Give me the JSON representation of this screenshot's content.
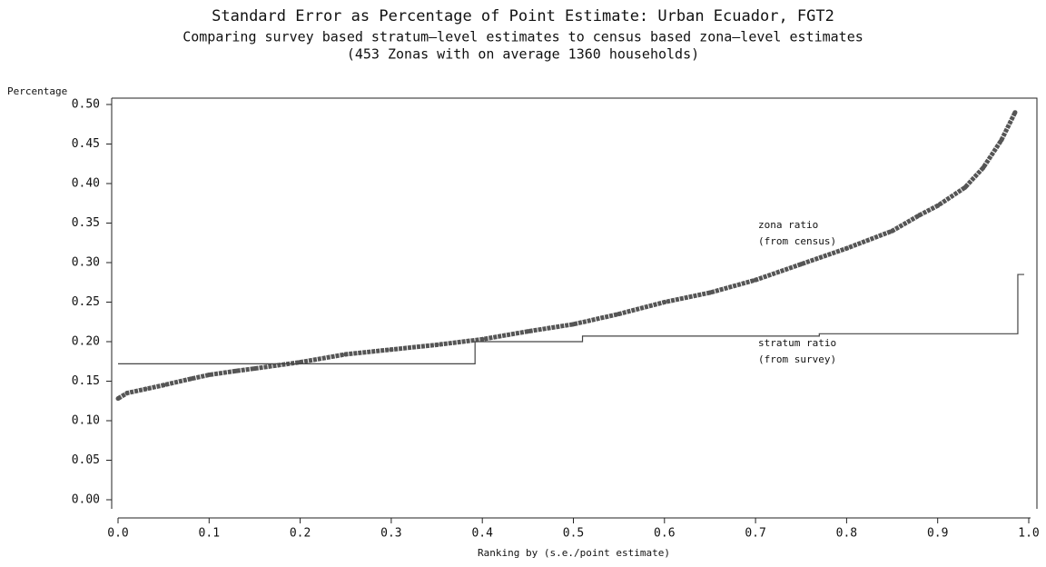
{
  "chart_data": {
    "type": "line",
    "title": "Standard Error as Percentage of Point Estimate: Urban Ecuador, FGT2",
    "subtitle": "Comparing survey based stratum—level estimates to census based zona—level estimates",
    "subtitle2": "(453 Zonas with on average 1360 households)",
    "ylabel": "Percentage",
    "xlabel": "Ranking by (s.e./point estimate)",
    "xlim": [
      0,
      1
    ],
    "ylim": [
      0,
      0.5
    ],
    "xticks": [
      {
        "value": 0,
        "label": "0.0"
      },
      0.1,
      0.2,
      0.3,
      0.4,
      0.5,
      0.6,
      0.7,
      0.8,
      0.9,
      {
        "value": 1,
        "label": "1.0"
      }
    ],
    "yticks": [
      {
        "value": 0,
        "label": "0.00"
      },
      0.05,
      {
        "value": 0.1,
        "label": "0.10"
      },
      0.15,
      {
        "value": 0.2,
        "label": "0.20"
      },
      0.25,
      {
        "value": 0.3,
        "label": "0.30"
      },
      0.35,
      {
        "value": 0.4,
        "label": "0.40"
      },
      0.45,
      {
        "value": 0.5,
        "label": "0.50"
      }
    ],
    "series": [
      {
        "name": "zona ratio",
        "annotation": "(from census)",
        "color": "#555555",
        "marker": "dots",
        "x": [
          0,
          0.01,
          0.03,
          0.05,
          0.08,
          0.1,
          0.13,
          0.15,
          0.2,
          0.25,
          0.3,
          0.35,
          0.4,
          0.45,
          0.5,
          0.55,
          0.6,
          0.65,
          0.7,
          0.75,
          0.8,
          0.85,
          0.88,
          0.9,
          0.93,
          0.95,
          0.97,
          0.985
        ],
        "values": [
          0.128,
          0.135,
          0.14,
          0.145,
          0.153,
          0.158,
          0.163,
          0.166,
          0.174,
          0.184,
          0.19,
          0.196,
          0.203,
          0.213,
          0.222,
          0.235,
          0.25,
          0.262,
          0.278,
          0.298,
          0.318,
          0.34,
          0.36,
          0.372,
          0.395,
          0.42,
          0.455,
          0.49
        ]
      },
      {
        "name": "stratum ratio",
        "annotation": "(from survey)",
        "color": "#444444",
        "marker": "line",
        "x": [
          0,
          0.392,
          0.392,
          0.51,
          0.51,
          0.77,
          0.77,
          0.988,
          0.988,
          0.995
        ],
        "values": [
          0.172,
          0.172,
          0.2,
          0.2,
          0.207,
          0.207,
          0.21,
          0.21,
          0.285,
          0.285
        ]
      }
    ]
  }
}
